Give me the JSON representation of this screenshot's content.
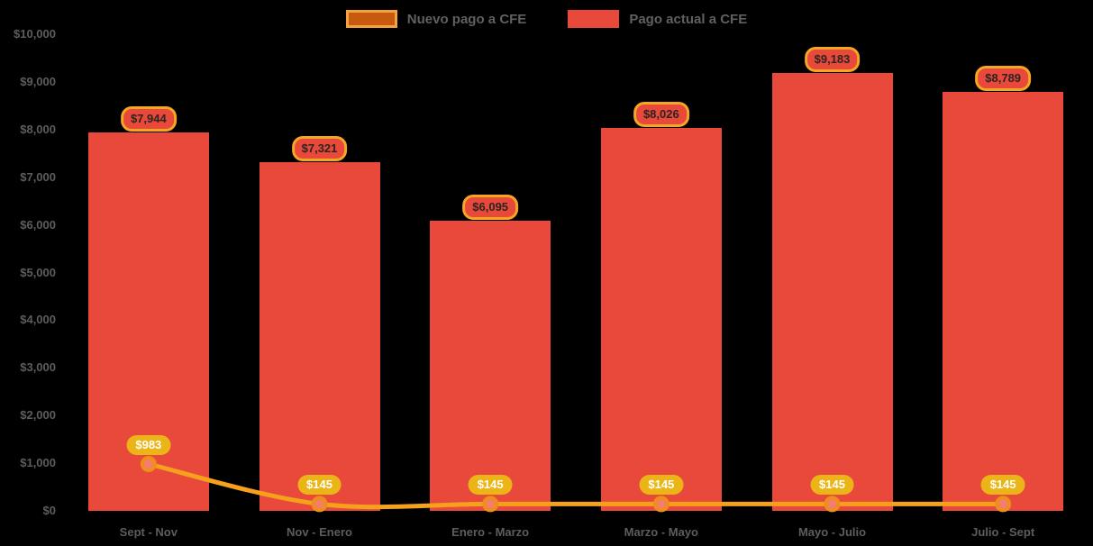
{
  "chart_data": {
    "type": "combo-bar-line",
    "title": "",
    "categories": [
      "Sept - Nov",
      "Nov - Enero",
      "Enero - Marzo",
      "Marzo - Mayo",
      "Mayo - Julio",
      "Julio - Sept"
    ],
    "series": [
      {
        "name": "Nuevo pago a CFE",
        "type": "line",
        "values": [
          983,
          145,
          145,
          145,
          145,
          145
        ],
        "labels": [
          "$983",
          "$145",
          "$145",
          "$145",
          "$145",
          "$145"
        ],
        "color": "#f6a11c",
        "marker_fill": "#f47d6e",
        "marker_stroke": "#ee8e1b",
        "label_bg": "#ecb517",
        "label_text_color": "#ffffff"
      },
      {
        "name": "Pago actual a CFE",
        "type": "bar",
        "values": [
          7944,
          7321,
          6095,
          8026,
          9183,
          8789
        ],
        "labels": [
          "$7,944",
          "$7,321",
          "$6,095",
          "$8,026",
          "$9,183",
          "$8,789"
        ],
        "color": "#e8493b",
        "label_bg": "#e8493b",
        "label_border": "#f5a623",
        "label_text_color": "#2b2420"
      }
    ],
    "y_axis": {
      "ticks": [
        "$0",
        "$1,000",
        "$2,000",
        "$3,000",
        "$4,000",
        "$5,000",
        "$6,000",
        "$7,000",
        "$8,000",
        "$9,000",
        "$10,000"
      ],
      "min": 0,
      "max": 10000,
      "step": 1000
    },
    "legend": {
      "position": "top"
    },
    "background_color": "#000000",
    "axis_text_color": "#5d5d5d",
    "grid": false
  }
}
